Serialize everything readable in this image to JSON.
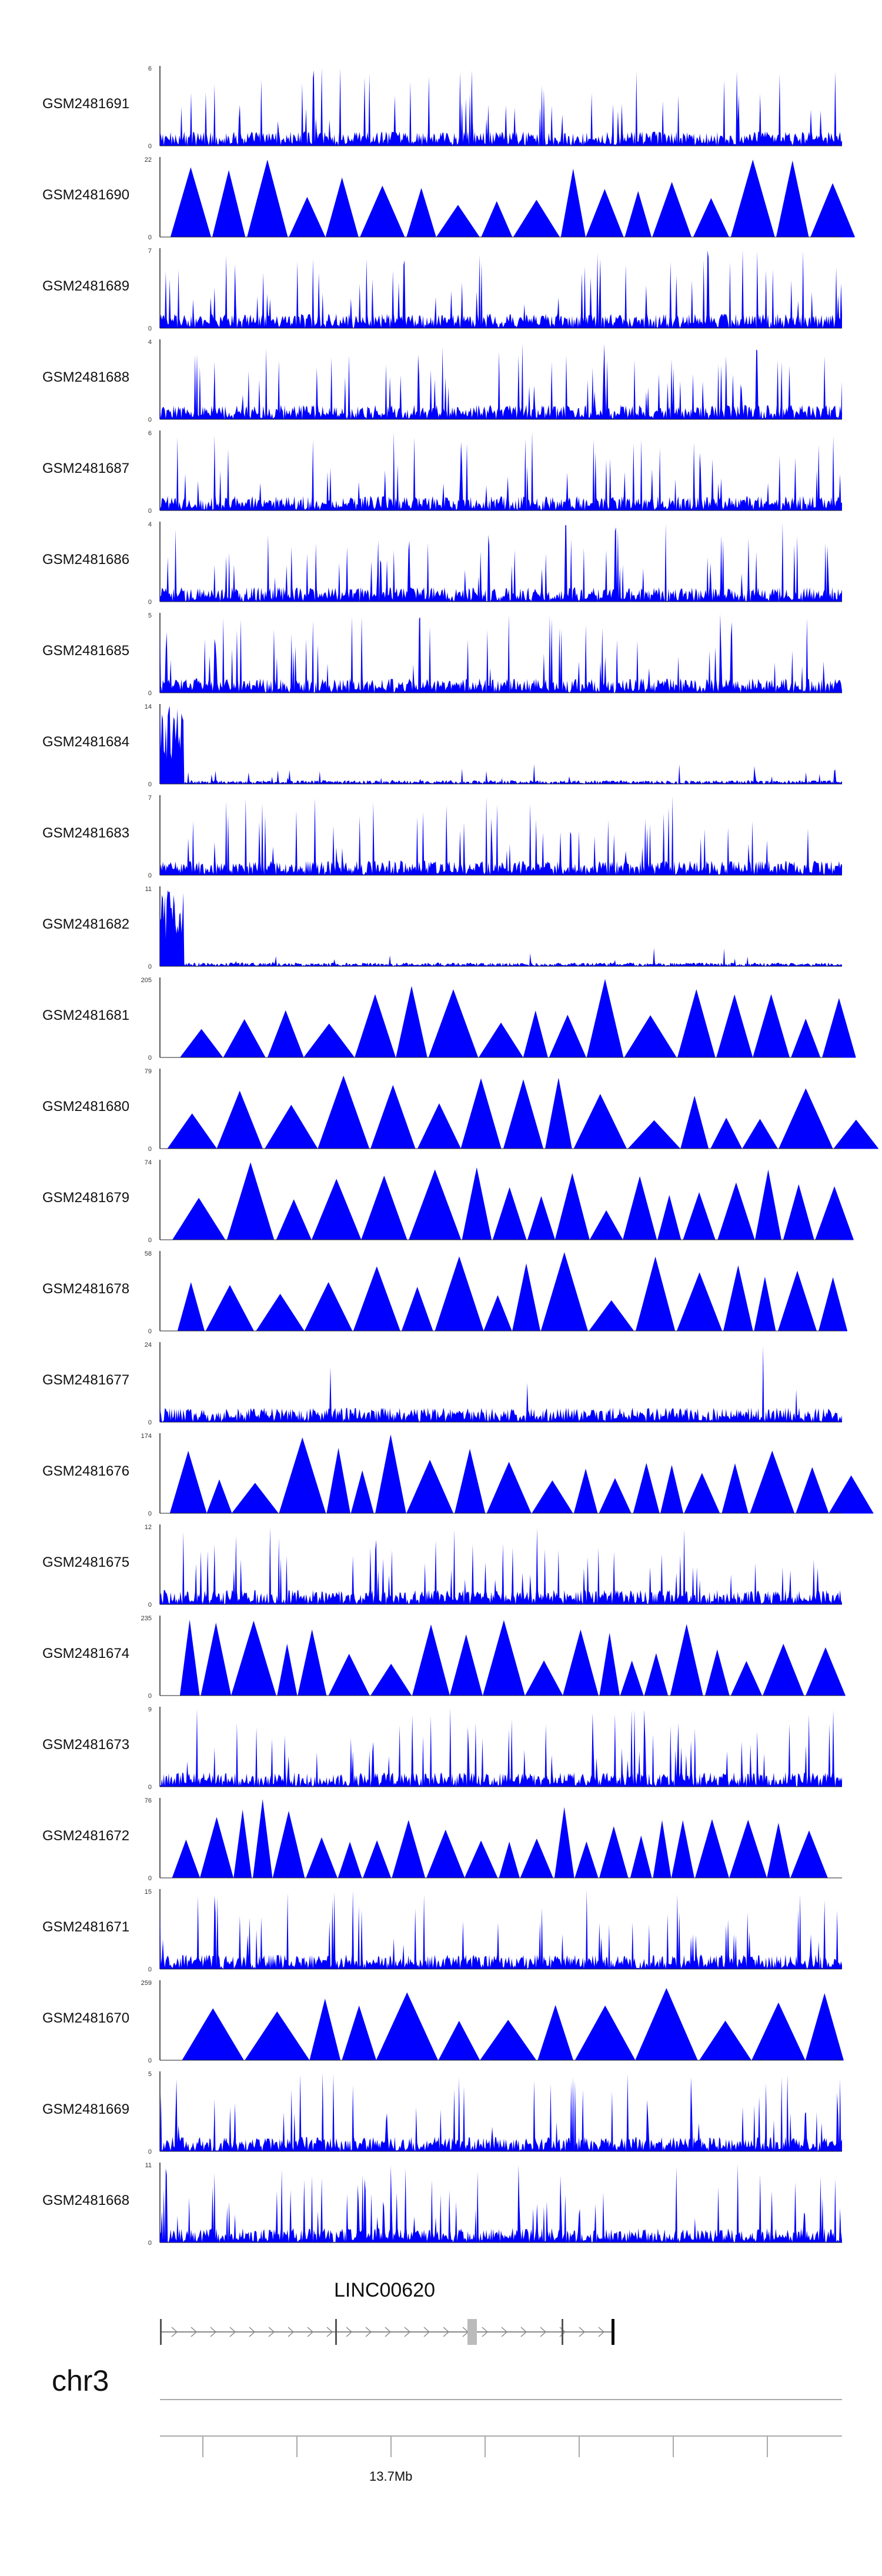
{
  "chart_data": {
    "type": "area",
    "series_color": "#0000ff",
    "tracks": [
      {
        "name": "GSM2481691",
        "ymax": 6,
        "ymin": 0,
        "profile": "dense"
      },
      {
        "name": "GSM2481690",
        "ymax": 22,
        "ymin": 0,
        "profile": "tri"
      },
      {
        "name": "GSM2481689",
        "ymax": 7,
        "ymin": 0,
        "profile": "dense"
      },
      {
        "name": "GSM2481688",
        "ymax": 4,
        "ymin": 0,
        "profile": "dense"
      },
      {
        "name": "GSM2481687",
        "ymax": 6,
        "ymin": 0,
        "profile": "dense"
      },
      {
        "name": "GSM2481686",
        "ymax": 4,
        "ymin": 0,
        "profile": "dense"
      },
      {
        "name": "GSM2481685",
        "ymax": 5,
        "ymin": 0,
        "profile": "dense"
      },
      {
        "name": "GSM2481684",
        "ymax": 14,
        "ymin": 0,
        "profile": "lowfront"
      },
      {
        "name": "GSM2481683",
        "ymax": 7,
        "ymin": 0,
        "profile": "dense"
      },
      {
        "name": "GSM2481682",
        "ymax": 11,
        "ymin": 0,
        "profile": "lowfront"
      },
      {
        "name": "GSM2481681",
        "ymax": 205,
        "ymin": 0,
        "profile": "tri"
      },
      {
        "name": "GSM2481680",
        "ymax": 79,
        "ymin": 0,
        "profile": "tri"
      },
      {
        "name": "GSM2481679",
        "ymax": 74,
        "ymin": 0,
        "profile": "tri"
      },
      {
        "name": "GSM2481678",
        "ymax": 58,
        "ymin": 0,
        "profile": "tri"
      },
      {
        "name": "GSM2481677",
        "ymax": 24,
        "ymin": 0,
        "profile": "sparse"
      },
      {
        "name": "GSM2481676",
        "ymax": 174,
        "ymin": 0,
        "profile": "tri"
      },
      {
        "name": "GSM2481675",
        "ymax": 12,
        "ymin": 0,
        "profile": "dense"
      },
      {
        "name": "GSM2481674",
        "ymax": 235,
        "ymin": 0,
        "profile": "tri"
      },
      {
        "name": "GSM2481673",
        "ymax": 9,
        "ymin": 0,
        "profile": "dense"
      },
      {
        "name": "GSM2481672",
        "ymax": 76,
        "ymin": 0,
        "profile": "tri"
      },
      {
        "name": "GSM2481671",
        "ymax": 15,
        "ymin": 0,
        "profile": "dense"
      },
      {
        "name": "GSM2481670",
        "ymax": 259,
        "ymin": 0,
        "profile": "tri"
      },
      {
        "name": "GSM2481669",
        "ymax": 5,
        "ymin": 0,
        "profile": "dense"
      },
      {
        "name": "GSM2481668",
        "ymax": 11,
        "ymin": 0,
        "profile": "dense"
      }
    ],
    "gene": {
      "name": "LINC00620",
      "strand": "+"
    },
    "chromosome": "chr3",
    "axis_tick_label": "13.7Mb"
  }
}
